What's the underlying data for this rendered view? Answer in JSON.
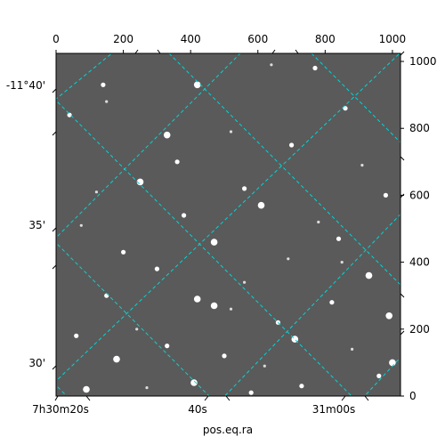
{
  "chart_data": {
    "type": "scatter",
    "description_kind": "astronomical-image-with-wcs-grid",
    "xlabel": "pos.eq.ra",
    "ylabel": "",
    "pixel_axes": {
      "xlim": [
        0,
        1024
      ],
      "ylim": [
        0,
        1024
      ],
      "x_ticks": [
        0,
        200,
        400,
        600,
        800,
        1000
      ],
      "y_ticks": [
        0,
        200,
        400,
        600,
        800,
        1000
      ]
    },
    "world_labels": {
      "ra": [
        "7h30m20s",
        "40s",
        "31m00s"
      ],
      "dec": [
        "-11°40'",
        "35'",
        "30'"
      ]
    },
    "grid": true,
    "grid_color": "#00d5d5",
    "background_color": "#5a5a5a",
    "stars": {
      "x": [
        770,
        640,
        420,
        150,
        860,
        40,
        520,
        330,
        700,
        910,
        250,
        560,
        120,
        980,
        610,
        380,
        75,
        840,
        470,
        200,
        690,
        300,
        930,
        560,
        150,
        420,
        820,
        520,
        990,
        660,
        240,
        60,
        710,
        330,
        880,
        500,
        180,
        620,
        960,
        410,
        730,
        270,
        90,
        580,
        850,
        360,
        470,
        140,
        780,
        1000
      ],
      "y": [
        980,
        990,
        930,
        880,
        860,
        840,
        790,
        780,
        750,
        690,
        640,
        620,
        610,
        600,
        570,
        540,
        510,
        470,
        460,
        430,
        410,
        380,
        360,
        340,
        300,
        290,
        280,
        260,
        240,
        220,
        200,
        180,
        170,
        150,
        140,
        120,
        110,
        90,
        60,
        40,
        30,
        25,
        20,
        10,
        400,
        700,
        270,
        930,
        520,
        100
      ],
      "mag": [
        2,
        3,
        1,
        3,
        2,
        2,
        3,
        1,
        2,
        3,
        1,
        2,
        3,
        2,
        1,
        2,
        3,
        2,
        1,
        2,
        3,
        2,
        1,
        3,
        2,
        1,
        2,
        3,
        1,
        2,
        3,
        2,
        1,
        2,
        3,
        2,
        1,
        3,
        2,
        1,
        2,
        3,
        1,
        2,
        3,
        2,
        1,
        2,
        3,
        1
      ]
    }
  }
}
